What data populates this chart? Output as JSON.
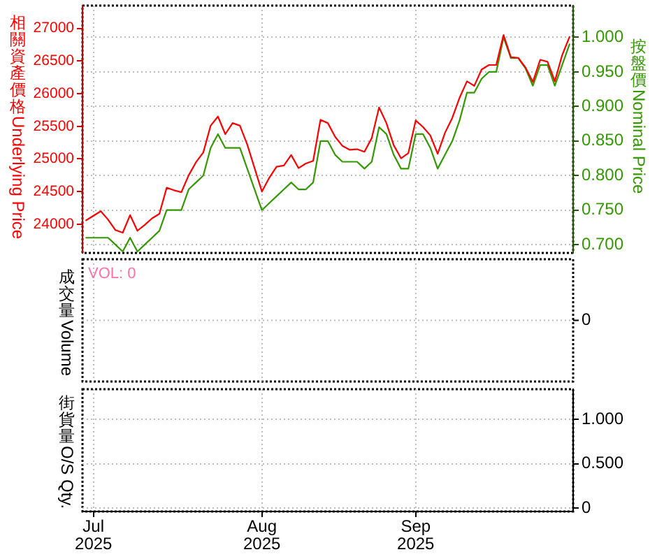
{
  "chart_data": [
    {
      "type": "line",
      "ylabel": "相關資產價格Underlying Price",
      "y2label": "按盤價Nominal Price",
      "categories": [
        null,
        null,
        null,
        null,
        null,
        null,
        null,
        null,
        null,
        null,
        null,
        null,
        null,
        null,
        null,
        null,
        null,
        null,
        null,
        null,
        null,
        null,
        null,
        null,
        null,
        null,
        null,
        null,
        null,
        null,
        null,
        null,
        null,
        null,
        null,
        null,
        null,
        null,
        null,
        null,
        null,
        null,
        null,
        null,
        null,
        null,
        null,
        null,
        null,
        null,
        null,
        null,
        null,
        null,
        null,
        null,
        null,
        null,
        null,
        null,
        null,
        null,
        null,
        null,
        null,
        null,
        null
      ],
      "series": [
        {
          "color": "#ff0000",
          "values": [
            24060,
            24130,
            24200,
            24070,
            23910,
            23870,
            24140,
            23900,
            23990,
            24090,
            24160,
            24560,
            24520,
            24490,
            24750,
            24950,
            25100,
            25510,
            25650,
            25380,
            25550,
            25510,
            25220,
            24860,
            24500,
            24710,
            24880,
            24900,
            25060,
            24860,
            24930,
            24970,
            25600,
            25550,
            25340,
            25200,
            25140,
            25150,
            25110,
            25320,
            25790,
            25550,
            25210,
            25010,
            25090,
            25590,
            25490,
            25360,
            25080,
            25400,
            25630,
            25940,
            26190,
            26120,
            26370,
            26440,
            26440,
            26900,
            26560,
            26550,
            26400,
            26180,
            26520,
            26490,
            26190,
            26590,
            26870
          ]
        },
        {
          "color": "#339900",
          "axis": "y2",
          "values": [
            0.71,
            0.71,
            0.71,
            0.71,
            0.7,
            0.69,
            0.71,
            0.69,
            0.7,
            0.71,
            0.72,
            0.75,
            0.75,
            0.75,
            0.78,
            0.79,
            0.8,
            0.84,
            0.86,
            0.84,
            0.84,
            0.84,
            0.81,
            0.78,
            0.75,
            0.76,
            0.77,
            0.78,
            0.79,
            0.78,
            0.78,
            0.79,
            0.85,
            0.85,
            0.83,
            0.82,
            0.82,
            0.82,
            0.81,
            0.82,
            0.87,
            0.86,
            0.83,
            0.81,
            0.81,
            0.86,
            0.86,
            0.84,
            0.81,
            0.83,
            0.85,
            0.88,
            0.92,
            0.92,
            0.94,
            0.95,
            0.95,
            1.0,
            0.97,
            0.97,
            0.955,
            0.93,
            0.96,
            0.96,
            0.93,
            0.96,
            0.99
          ]
        }
      ],
      "ylim": [
        23560,
        27350
      ],
      "yticks": [
        24000,
        24500,
        25000,
        25500,
        26000,
        26500,
        27000
      ],
      "y2lim": [
        0.688,
        1.046
      ],
      "y2ticks": [
        {
          "value": 0.7,
          "label": "0.700"
        },
        {
          "value": 0.75,
          "label": "0.750"
        },
        {
          "value": 0.8,
          "label": "0.800"
        },
        {
          "value": 0.85,
          "label": "0.850"
        },
        {
          "value": 0.9,
          "label": "0.900"
        },
        {
          "value": 0.95,
          "label": "0.950"
        },
        {
          "value": 1,
          "label": "1.000"
        }
      ],
      "grid": true,
      "tick_labels": "y"
    },
    {
      "type": "other",
      "ylabel": "成交量Volume",
      "annotations": [
        "VOL: 0",
        "0"
      ]
    },
    {
      "type": "line",
      "ylabel": "街貨量O/S Qty.",
      "categories": [
        null,
        "Jul 2025",
        null,
        null,
        null,
        null,
        null,
        null,
        null,
        null,
        null,
        null,
        null,
        null,
        null,
        null,
        null,
        null,
        null,
        null,
        null,
        null,
        null,
        null,
        "Aug 2025",
        null,
        null,
        null,
        null,
        null,
        null,
        null,
        null,
        null,
        null,
        null,
        null,
        null,
        null,
        null,
        null,
        null,
        null,
        null,
        null,
        "Sep 2025",
        null,
        null,
        null,
        null,
        null,
        null,
        null,
        null,
        null,
        null,
        null,
        null,
        null,
        null,
        null,
        null,
        null,
        null,
        null,
        null,
        null
      ],
      "values": [
        null,
        null,
        null,
        null,
        null,
        null,
        null,
        null,
        null,
        null,
        null,
        null,
        null,
        null,
        null,
        null,
        null,
        null,
        null,
        null,
        null,
        null,
        null,
        null,
        null,
        null,
        null,
        null,
        null,
        null,
        null,
        null,
        null,
        null,
        null,
        null,
        null,
        null,
        null,
        null,
        null,
        null,
        null,
        null,
        null,
        null,
        null,
        null,
        null,
        null,
        null,
        null,
        null,
        null,
        null,
        null,
        null,
        null,
        null,
        null,
        null,
        null,
        null,
        null,
        null,
        null,
        null
      ],
      "ylim": [
        -0.04,
        1.34
      ],
      "yticks": [
        0,
        {
          "value": 0.5,
          "label": "0.500"
        },
        {
          "value": 1,
          "label": "1.000"
        }
      ],
      "grid": true
    }
  ]
}
